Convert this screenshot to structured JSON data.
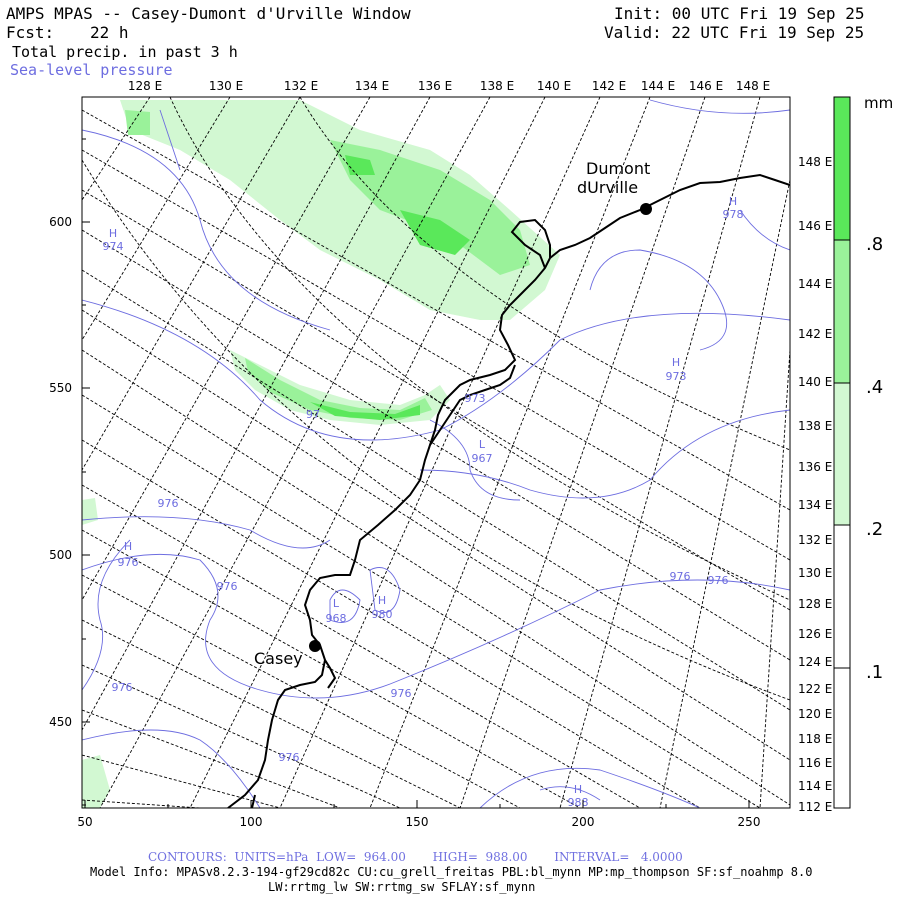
{
  "header": {
    "title": "AMPS MPAS -- Casey-Dumont d'Urville Window",
    "fcst_label": "Fcst:",
    "fcst_value": "22 h",
    "init": "Init: 00 UTC Fri 19 Sep 25",
    "valid": "Valid: 22 UTC Fri 19 Sep 25",
    "field1": "Total precip. in past 3 h",
    "field2": "Sea-level pressure"
  },
  "top_lon_labels": [
    "128 E",
    "130 E",
    "132 E",
    "134 E",
    "136 E",
    "138 E",
    "140 E",
    "142 E",
    "144 E",
    "146 E",
    "148 E"
  ],
  "right_lon_labels": [
    "148 E",
    "146 E",
    "144 E",
    "142 E",
    "140 E",
    "138 E",
    "136 E",
    "134 E",
    "132 E",
    "130 E",
    "128 E",
    "126 E",
    "124 E",
    "122 E",
    "120 E",
    "118 E",
    "116 E",
    "114 E",
    "112 E"
  ],
  "y_axis_labels": [
    "600",
    "550",
    "500",
    "450"
  ],
  "x_axis_labels": [
    "50",
    "100",
    "150",
    "200",
    "250"
  ],
  "stations": [
    {
      "name_line1": "Dumont",
      "name_line2": "dUrville"
    },
    {
      "name_line1": "Casey",
      "name_line2": ""
    }
  ],
  "pressure_labels": [
    {
      "letter": "H",
      "value": "974"
    },
    {
      "letter": "H",
      "value": "978"
    },
    {
      "letter": "H",
      "value": "973"
    },
    {
      "letter": "",
      "value": "973"
    },
    {
      "letter": "L",
      "value": "967"
    },
    {
      "letter": "",
      "value": "97"
    },
    {
      "letter": "",
      "value": "976"
    },
    {
      "letter": "H",
      "value": "976"
    },
    {
      "letter": "",
      "value": "976"
    },
    {
      "letter": "L",
      "value": "968"
    },
    {
      "letter": "H",
      "value": "980"
    },
    {
      "letter": "",
      "value": "976"
    },
    {
      "letter": "",
      "value": "976"
    },
    {
      "letter": "",
      "value": "976"
    },
    {
      "letter": "",
      "value": "976"
    },
    {
      "letter": "",
      "value": "976"
    },
    {
      "letter": "H",
      "value": "988"
    }
  ],
  "colorbar": {
    "unit": "mm",
    "labels": [
      ".8",
      ".4",
      ".2",
      ".1"
    ],
    "segment_colors": [
      "#5ae85a",
      "#9af29a",
      "#d2f8d2",
      "#ffffff"
    ]
  },
  "footer": {
    "contours": "CONTOURS:  UNITS=hPa  LOW=  964.00       HIGH=  988.00       INTERVAL=   4.0000",
    "model_info": "Model Info: MPASv8.2.3-194-gf29cd82c CU:cu_grell_freitas PBL:bl_mynn MP:mp_thompson SF:sf_noahmp 8.0",
    "model_info2": "LW:rrtmg_lw SW:rrtmg_sw SFLAY:sf_mynn"
  },
  "colors": {
    "contour": "#6d6de0",
    "precip_light": "#d2f8d2",
    "precip_mid": "#9af29a",
    "precip_dark": "#5ae85a"
  }
}
